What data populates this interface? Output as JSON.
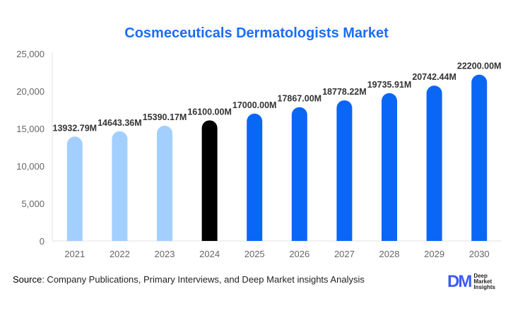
{
  "chart_data": {
    "type": "bar",
    "title": "Cosmeceuticals Dermatologists Market",
    "categories": [
      "2021",
      "2022",
      "2023",
      "2024",
      "2025",
      "2026",
      "2027",
      "2028",
      "2029",
      "2030"
    ],
    "values": [
      13932.79,
      14643.36,
      15390.17,
      16100.0,
      17000.0,
      17867.0,
      18778.22,
      19735.91,
      20742.44,
      22200.0
    ],
    "data_labels": [
      "13932.79M",
      "14643.36M",
      "15390.17M",
      "16100.00M",
      "17000.00M",
      "17867.00M",
      "18778.22M",
      "19735.91M",
      "20742.44M",
      "22200.00M"
    ],
    "bar_colors": [
      "#a3cffe",
      "#a3cffe",
      "#a3cffe",
      "#000000",
      "#0a66f5",
      "#0a66f5",
      "#0a66f5",
      "#0a66f5",
      "#0a66f5",
      "#0a66f5"
    ],
    "ylim": [
      0,
      25000
    ],
    "yticks": [
      "0",
      "5,000",
      "10,000",
      "15,000",
      "20,000",
      "25,000"
    ],
    "ytick_values": [
      0,
      5000,
      10000,
      15000,
      20000,
      25000
    ],
    "grid": false,
    "xlabel": "",
    "ylabel": ""
  },
  "footer": {
    "source_label": "Source",
    "source_text": ": Company Publications, Primary Interviews, and Deep Market insights Analysis"
  },
  "logo": {
    "mark": "DM",
    "text": "Deep Market Insights"
  }
}
